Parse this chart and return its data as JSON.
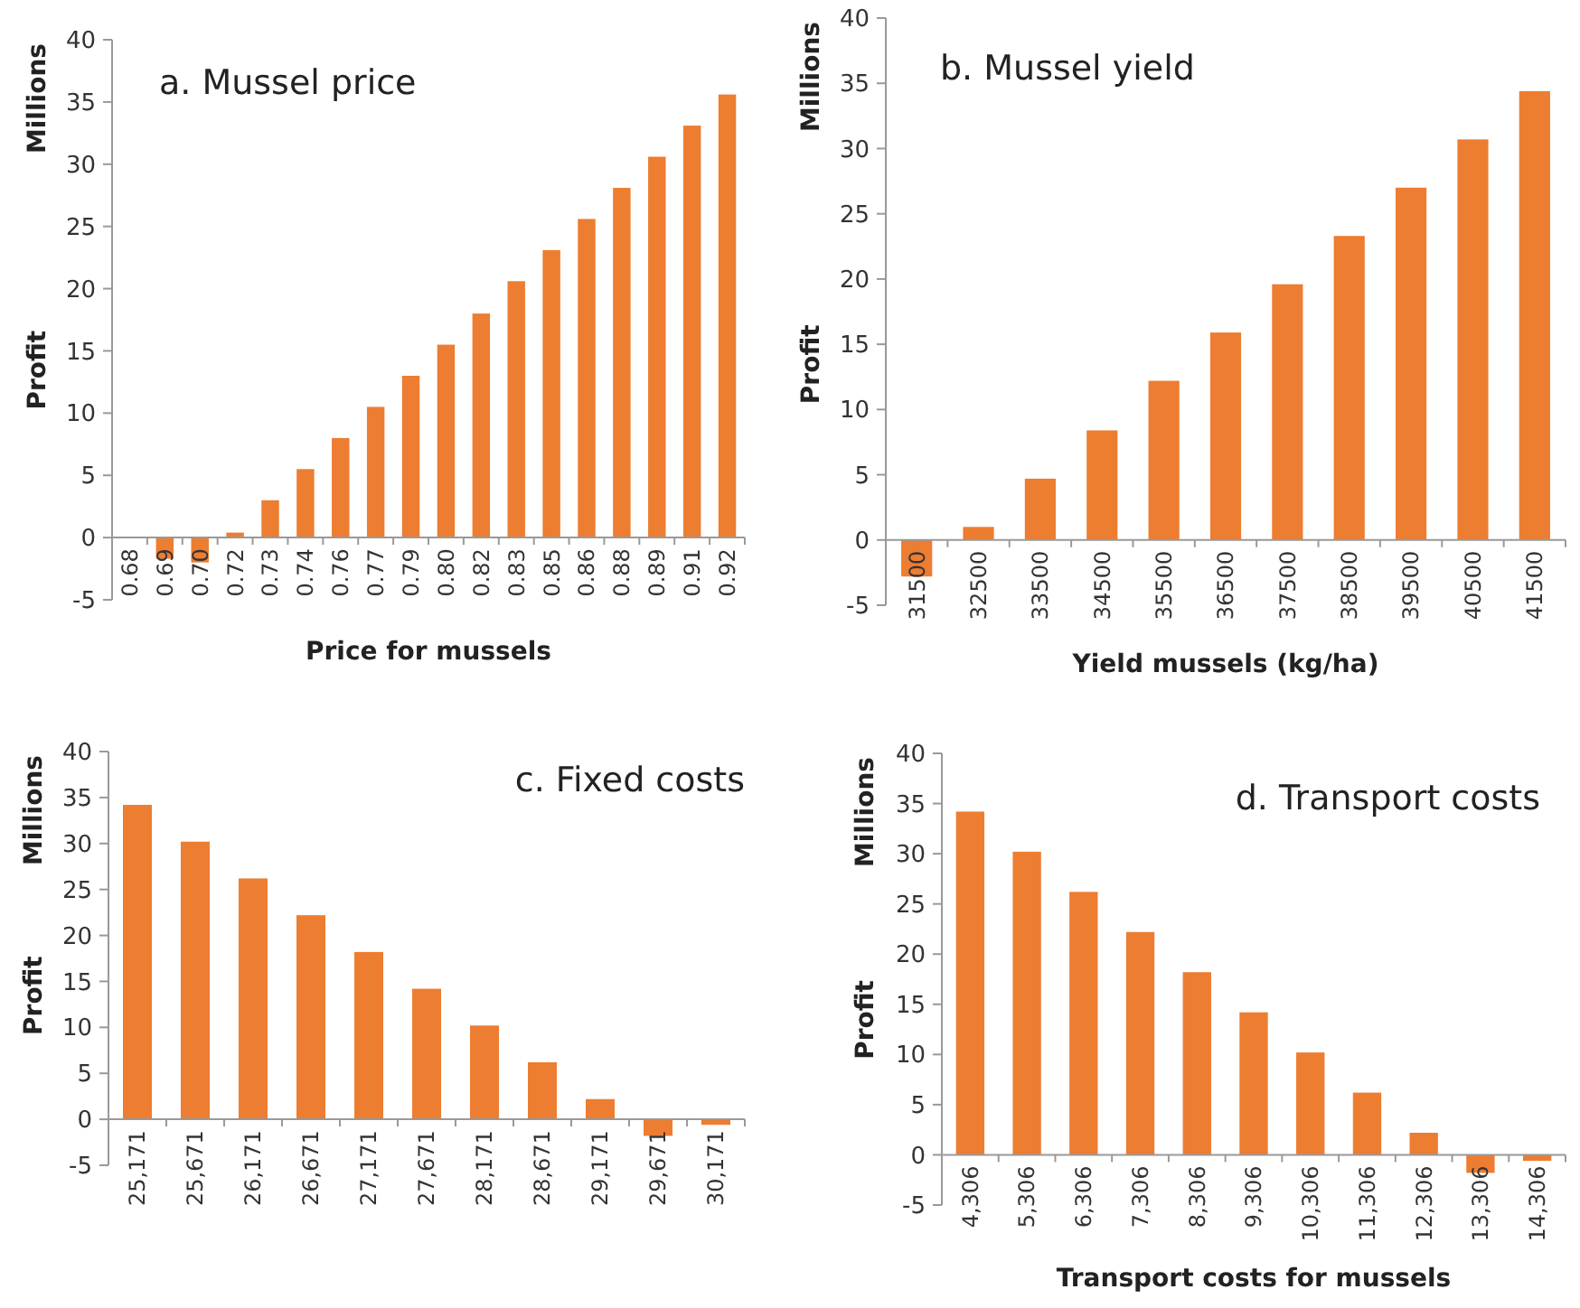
{
  "chart_data": [
    {
      "type": "bar",
      "title": "a. Mussel price",
      "xlabel": "Price for mussels",
      "ylabel": "Profit",
      "annotations": [
        "Millions"
      ],
      "categories": [
        "0.68",
        "0.69",
        "0.70",
        "0.72",
        "0.73",
        "0.74",
        "0.76",
        "0.77",
        "0.79",
        "0.80",
        "0.82",
        "0.83",
        "0.85",
        "0.86",
        "0.88",
        "0.89",
        "0.91",
        "0.92"
      ],
      "series": [
        {
          "color": "#ed7d31",
          "values": [
            null,
            -1.7,
            -2.0,
            0.4,
            3.0,
            5.5,
            8.0,
            10.5,
            13.0,
            15.5,
            18.0,
            20.6,
            23.1,
            25.6,
            28.1,
            30.6,
            33.1,
            35.6
          ]
        }
      ],
      "ylim": [
        -5,
        40
      ],
      "yticks": [
        -5,
        0,
        5,
        10,
        15,
        20,
        25,
        30,
        35,
        40
      ]
    },
    {
      "type": "bar",
      "title": "b. Mussel yield",
      "xlabel": "Yield mussels (kg/ha)",
      "ylabel": "Profit",
      "annotations": [
        "Millions"
      ],
      "categories": [
        "31500",
        "32500",
        "33500",
        "34500",
        "35500",
        "36500",
        "37500",
        "38500",
        "39500",
        "40500",
        "41500"
      ],
      "series": [
        {
          "color": "#ed7d31",
          "values": [
            -2.8,
            1.0,
            4.7,
            8.4,
            12.2,
            15.9,
            19.6,
            23.3,
            27.0,
            30.7,
            34.4
          ]
        }
      ],
      "ylim": [
        -5,
        40
      ],
      "yticks": [
        -5,
        0,
        5,
        10,
        15,
        20,
        25,
        30,
        35,
        40
      ]
    },
    {
      "type": "bar",
      "title": "c. Fixed costs",
      "ylabel": "Profit",
      "annotations": [
        "Millions"
      ],
      "categories": [
        "25,171",
        "25,671",
        "26,171",
        "26,671",
        "27,171",
        "27,671",
        "28,171",
        "28,671",
        "29,171",
        "29,671",
        "30,171"
      ],
      "series": [
        {
          "color": "#ed7d31",
          "values": [
            34.2,
            30.2,
            26.2,
            22.2,
            18.2,
            14.2,
            10.2,
            6.2,
            2.2,
            -1.8,
            -0.6
          ]
        }
      ],
      "ylim": [
        -5,
        40
      ],
      "yticks": [
        -5,
        0,
        5,
        10,
        15,
        20,
        25,
        30,
        35,
        40
      ]
    },
    {
      "type": "bar",
      "title": "d. Transport costs",
      "xlabel": "Transport costs for mussels",
      "ylabel": "Profit",
      "annotations": [
        "Millions"
      ],
      "categories": [
        "4,306",
        "5,306",
        "6,306",
        "7,306",
        "8,306",
        "9,306",
        "10,306",
        "11,306",
        "12,306",
        "13,306",
        "14,306"
      ],
      "series": [
        {
          "color": "#ed7d31",
          "values": [
            34.2,
            30.2,
            26.2,
            22.2,
            18.2,
            14.2,
            10.2,
            6.2,
            2.2,
            -1.8,
            -0.6
          ]
        }
      ],
      "ylim": [
        -5,
        40
      ],
      "yticks": [
        -5,
        0,
        5,
        10,
        15,
        20,
        25,
        30,
        35,
        40
      ]
    }
  ]
}
